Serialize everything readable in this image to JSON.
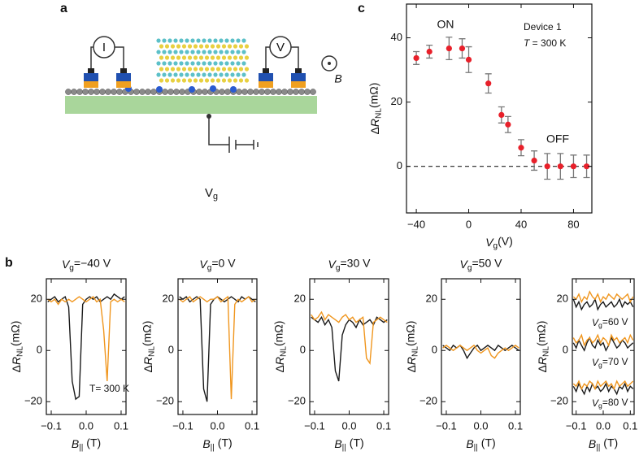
{
  "panel_labels": [
    "a",
    "b",
    "c"
  ],
  "diagram": {
    "current_source": "I",
    "voltmeter": "V",
    "field": "B",
    "gate": {
      "main": "V",
      "sub": "g"
    }
  },
  "chart_data": [
    {
      "type": "scatter",
      "color": "#e8202a",
      "error_color": "#777777",
      "x_label": {
        "main": "V",
        "sub": "g",
        "post": "(V)"
      },
      "y_label": {
        "pre": "Δ",
        "main": "R",
        "sub": "NL",
        "post": "(mΩ)"
      },
      "annotations": [
        "ON",
        "OFF",
        "Device 1",
        {
          "main": "T",
          "post": " = 300 K"
        }
      ],
      "zero_line": true,
      "x": [
        -40,
        -30,
        -15,
        -5,
        0,
        15,
        25,
        30,
        40,
        50,
        60,
        70,
        80,
        90
      ],
      "series": [
        {
          "color": "#e8202a",
          "values": [
            33.7,
            35.7,
            36.7,
            36.7,
            33.2,
            25.8,
            16,
            13,
            5.8,
            1.8,
            0,
            0,
            0,
            0
          ],
          "errors": [
            2,
            2,
            3.5,
            3,
            4,
            3,
            2.5,
            2.5,
            2.5,
            3,
            4,
            4,
            3.5,
            3.5
          ]
        }
      ],
      "xlim": [
        -47.5,
        94
      ],
      "ylim": [
        -14.5,
        50.5
      ],
      "xticks": [
        {
          "value": -40,
          "label": "−40"
        },
        0,
        40,
        80
      ],
      "yticks": [
        0,
        20,
        40
      ]
    },
    {
      "type": "line",
      "title": {
        "main": "V",
        "sub": "g",
        "post": "=−40 V"
      },
      "x_label": {
        "main": "B",
        "sub": "||",
        "post": " (T)"
      },
      "y_label": {
        "pre": "Δ",
        "main": "R",
        "sub": "NL",
        "post": "(mΩ)"
      },
      "annotations": [
        "T= 300 K"
      ],
      "x": [
        -0.11,
        -0.1,
        -0.09,
        -0.08,
        -0.07,
        -0.06,
        -0.05,
        -0.04,
        -0.03,
        -0.02,
        -0.01,
        0,
        0.01,
        0.02,
        0.03,
        0.04,
        0.05,
        0.06,
        0.07,
        0.08,
        0.09,
        0.1,
        0.11
      ],
      "series": [
        {
          "color": "#1a1a1a",
          "values": [
            19,
            20,
            21,
            19,
            20,
            21,
            17,
            -12,
            -19,
            -18,
            18,
            20,
            21,
            20,
            21,
            19,
            20,
            21,
            20,
            22,
            21,
            20,
            21
          ]
        },
        {
          "color": "#f0961e",
          "values": [
            20,
            19,
            20,
            18,
            20,
            19,
            20,
            19,
            20,
            21,
            20,
            19,
            20,
            21,
            19,
            20,
            8,
            -12,
            19,
            20,
            19,
            20,
            19
          ]
        }
      ],
      "xlim": [
        -0.114,
        0.114
      ],
      "ylim": [
        -25,
        28
      ],
      "xticks": [
        {
          "value": -0.1,
          "label": "−0.1"
        },
        {
          "value": 0,
          "label": "0.0"
        },
        0.1
      ],
      "yticks": [
        {
          "value": -20,
          "label": "−20"
        },
        0,
        20
      ]
    },
    {
      "type": "line",
      "title": {
        "main": "V",
        "sub": "g",
        "post": "=0 V"
      },
      "x_label": {
        "main": "B",
        "sub": "||",
        "post": " (T)"
      },
      "y_label": {
        "pre": "Δ",
        "main": "R",
        "sub": "NL",
        "post": "(mΩ)"
      },
      "x": [
        -0.11,
        -0.1,
        -0.09,
        -0.08,
        -0.07,
        -0.06,
        -0.05,
        -0.04,
        -0.03,
        -0.02,
        -0.01,
        0,
        0.01,
        0.02,
        0.03,
        0.04,
        0.05,
        0.06,
        0.07,
        0.08,
        0.09,
        0.1,
        0.11
      ],
      "series": [
        {
          "color": "#1a1a1a",
          "values": [
            21,
            20,
            21,
            19,
            20,
            21,
            20,
            -15,
            -20,
            18,
            20,
            21,
            20,
            19,
            20,
            21,
            20,
            19,
            21,
            20,
            21,
            20,
            19
          ]
        },
        {
          "color": "#f0961e",
          "values": [
            20,
            19,
            20,
            21,
            19,
            20,
            21,
            20,
            19,
            20,
            20,
            21,
            19,
            20,
            21,
            -19,
            18,
            20,
            19,
            20,
            21,
            19,
            20
          ]
        }
      ],
      "xlim": [
        -0.114,
        0.114
      ],
      "ylim": [
        -25,
        28
      ],
      "xticks": [
        {
          "value": -0.1,
          "label": "−0.1"
        },
        {
          "value": 0,
          "label": "0.0"
        },
        0.1
      ],
      "yticks": [
        {
          "value": -20,
          "label": "−20"
        },
        0,
        20
      ]
    },
    {
      "type": "line",
      "title": {
        "main": "V",
        "sub": "g",
        "post": "=30 V"
      },
      "x_label": {
        "main": "B",
        "sub": "||",
        "post": " (T)"
      },
      "y_label": {
        "pre": "Δ",
        "main": "R",
        "sub": "NL",
        "post": "(mΩ)"
      },
      "x": [
        -0.11,
        -0.1,
        -0.09,
        -0.08,
        -0.07,
        -0.06,
        -0.05,
        -0.04,
        -0.03,
        -0.02,
        -0.01,
        0,
        0.01,
        0.02,
        0.03,
        0.04,
        0.05,
        0.06,
        0.07,
        0.08,
        0.09,
        0.1,
        0.11
      ],
      "series": [
        {
          "color": "#1a1a1a",
          "values": [
            13,
            12,
            11,
            13,
            10,
            12,
            9,
            -8,
            -12,
            6,
            10,
            12,
            11,
            9,
            12,
            10,
            11,
            12,
            10,
            13,
            12,
            11,
            12
          ]
        },
        {
          "color": "#f0961e",
          "values": [
            14,
            12,
            13,
            15,
            12,
            14,
            13,
            12,
            11,
            13,
            14,
            12,
            13,
            11,
            12,
            13,
            -3,
            -5,
            11,
            12,
            13,
            12,
            11
          ]
        }
      ],
      "xlim": [
        -0.114,
        0.114
      ],
      "ylim": [
        -25,
        28
      ],
      "xticks": [
        {
          "value": -0.1,
          "label": "−0.1"
        },
        {
          "value": 0,
          "label": "0.0"
        },
        0.1
      ],
      "yticks": [
        {
          "value": -20,
          "label": "−20"
        },
        0,
        20
      ]
    },
    {
      "type": "line",
      "title": {
        "main": "V",
        "sub": "g",
        "post": "=50 V"
      },
      "x_label": {
        "main": "B",
        "sub": "||",
        "post": " (T)"
      },
      "y_label": {
        "pre": "Δ",
        "main": "R",
        "sub": "NL",
        "post": "(mΩ)"
      },
      "x": [
        -0.11,
        -0.1,
        -0.09,
        -0.08,
        -0.07,
        -0.06,
        -0.05,
        -0.04,
        -0.03,
        -0.02,
        -0.01,
        0,
        0.01,
        0.02,
        0.03,
        0.04,
        0.05,
        0.06,
        0.07,
        0.08,
        0.09,
        0.1,
        0.11
      ],
      "series": [
        {
          "color": "#1a1a1a",
          "values": [
            2,
            1,
            0,
            2,
            1,
            2,
            0,
            -3,
            -1,
            1,
            2,
            0,
            1,
            2,
            1,
            0,
            2,
            1,
            0,
            1,
            2,
            1,
            0
          ]
        },
        {
          "color": "#f0961e",
          "values": [
            1,
            2,
            1,
            0,
            1,
            2,
            1,
            0,
            1,
            2,
            0,
            -1,
            0,
            1,
            -2,
            -3,
            -1,
            0,
            1,
            0,
            1,
            2,
            1
          ]
        }
      ],
      "xlim": [
        -0.114,
        0.114
      ],
      "ylim": [
        -25,
        28
      ],
      "xticks": [
        {
          "value": -0.1,
          "label": "−0.1"
        },
        {
          "value": 0,
          "label": "0.0"
        },
        0.1
      ],
      "yticks": [
        {
          "value": -20,
          "label": "−20"
        },
        0,
        20
      ]
    },
    {
      "type": "line",
      "x_label": {
        "main": "B",
        "sub": "||",
        "post": " (T)"
      },
      "y_label": {
        "pre": "Δ",
        "main": "R",
        "sub": "NL",
        "post": "(mΩ)"
      },
      "annotations": [
        {
          "main": "V",
          "sub": "g",
          "post": "=60 V"
        },
        {
          "main": "V",
          "sub": "g",
          "post": "=70 V"
        },
        {
          "main": "V",
          "sub": "g",
          "post": "=80 V"
        }
      ],
      "x": [
        -0.11,
        -0.1,
        -0.09,
        -0.08,
        -0.07,
        -0.06,
        -0.05,
        -0.04,
        -0.03,
        -0.02,
        -0.01,
        0,
        0.01,
        0.02,
        0.03,
        0.04,
        0.05,
        0.06,
        0.07,
        0.08,
        0.09,
        0.1,
        0.11
      ],
      "series": [
        {
          "color": "#1a1a1a",
          "values": [
            20,
            17,
            19,
            16,
            18,
            19,
            17,
            18,
            20,
            16,
            18,
            19,
            17,
            18,
            19,
            17,
            18,
            20,
            17,
            19,
            18,
            19,
            17
          ]
        },
        {
          "color": "#f0961e",
          "values": [
            21,
            20,
            22,
            19,
            21,
            20,
            23,
            21,
            20,
            22,
            19,
            21,
            20,
            22,
            21,
            20,
            22,
            21,
            20,
            21,
            22,
            19,
            21
          ]
        },
        {
          "color": "#1a1a1a",
          "values": [
            3,
            1,
            4,
            2,
            0,
            3,
            5,
            2,
            1,
            4,
            2,
            3,
            0,
            2,
            5,
            3,
            1,
            2,
            4,
            3,
            1,
            2,
            3
          ]
        },
        {
          "color": "#f0961e",
          "values": [
            5,
            3,
            4,
            6,
            2,
            4,
            5,
            3,
            4,
            6,
            3,
            5,
            4,
            2,
            6,
            4,
            5,
            3,
            4,
            5,
            3,
            6,
            4
          ]
        },
        {
          "color": "#1a1a1a",
          "values": [
            -14,
            -16,
            -13,
            -15,
            -17,
            -14,
            -16,
            -13,
            -15,
            -14,
            -16,
            -15,
            -13,
            -16,
            -14,
            -15,
            -17,
            -14,
            -15,
            -13,
            -16,
            -14,
            -15
          ]
        },
        {
          "color": "#f0961e",
          "values": [
            -13,
            -14,
            -12,
            -15,
            -13,
            -14,
            -12,
            -13,
            -15,
            -12,
            -14,
            -13,
            -12,
            -14,
            -13,
            -15,
            -12,
            -14,
            -13,
            -12,
            -14,
            -13,
            -12
          ]
        }
      ],
      "xlim": [
        -0.114,
        0.114
      ],
      "ylim": [
        -25,
        28
      ],
      "xticks": [
        {
          "value": -0.1,
          "label": "−0.1"
        },
        {
          "value": 0,
          "label": "0.0"
        },
        0.1
      ],
      "yticks": [
        {
          "value": -20,
          "label": "−20"
        },
        0,
        20
      ]
    }
  ]
}
